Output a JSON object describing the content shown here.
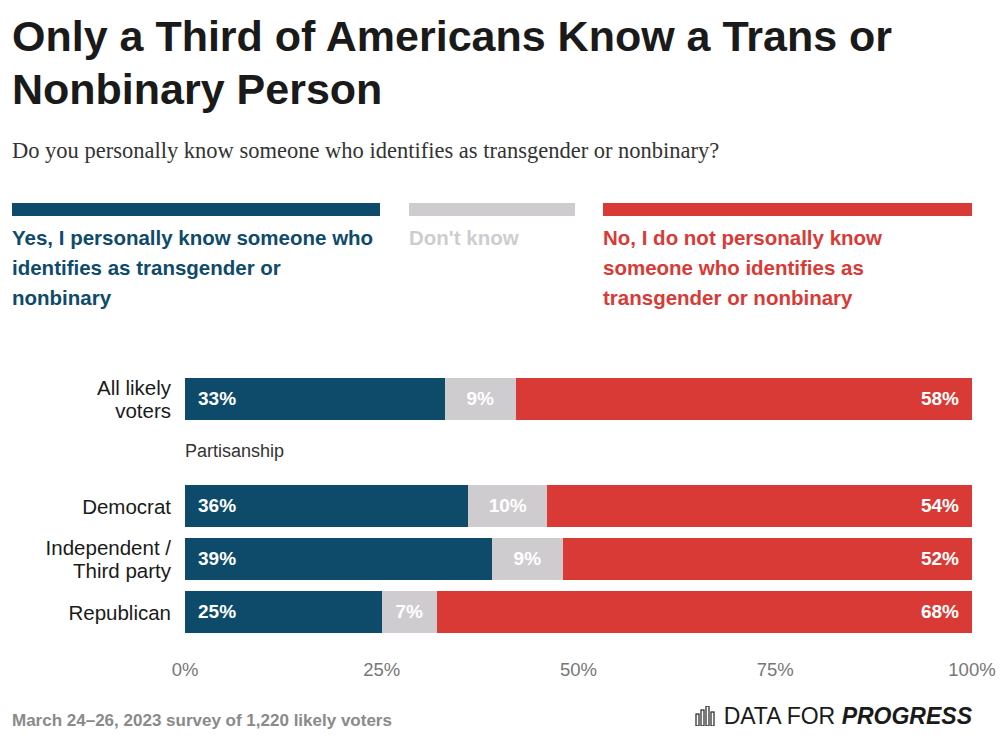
{
  "chart_data": {
    "type": "bar",
    "orientation": "horizontal",
    "stacked": true,
    "data_labels": true,
    "grid": false,
    "legend": "top",
    "title": "Only a Third of Americans Know a Trans or Nonbinary Person",
    "subtitle": "Do you personally know someone who identifies as transgender or nonbinary?",
    "categories": [
      "All likely voters",
      "Democrat",
      "Independent / Third party",
      "Republican"
    ],
    "annotations": [
      {
        "text": "Partisanship",
        "before": "Democrat"
      }
    ],
    "series": [
      {
        "name": "Yes, I personally know someone who identifies as transgender or nonbinary",
        "color": "#0e4b6b",
        "values": [
          33,
          36,
          39,
          25
        ],
        "value_labels": [
          "33%",
          "36%",
          "39%",
          "25%"
        ]
      },
      {
        "name": "Don't know",
        "color": "#cfccd0",
        "values": [
          9,
          10,
          9,
          7
        ],
        "value_labels": [
          "9%",
          "10%",
          "9%",
          "7%"
        ]
      },
      {
        "name": "No, I do not personally know someone who identifies as transgender or nonbinary",
        "color": "#d93a35",
        "values": [
          58,
          54,
          52,
          68
        ],
        "value_labels": [
          "58%",
          "54%",
          "52%",
          "68%"
        ]
      }
    ],
    "xlim": [
      0,
      100
    ],
    "xticks": [
      {
        "value": 0,
        "label": "0%"
      },
      {
        "value": 25,
        "label": "25%"
      },
      {
        "value": 50,
        "label": "50%"
      },
      {
        "value": 75,
        "label": "75%"
      },
      {
        "value": 100,
        "label": "100%"
      }
    ],
    "note": "March 24–26, 2023 survey of 1,220 likely voters",
    "logo": [
      "DATA FOR",
      "PROGRESS"
    ]
  }
}
